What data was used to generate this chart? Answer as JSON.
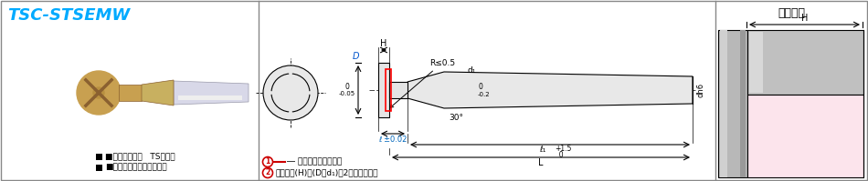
{
  "bg_color": "#ffffff",
  "title_text": "TSC-STSEMW",
  "title_color": "#00aaff",
  "title_fontsize": 13,
  "section1_label1": "■コーティング   TSコート",
  "section1_label2": "■材質　超微粒子超硬合金",
  "dim_l": "ℓ ±0.02",
  "dim_l1": "ℓ₁",
  "dim_R": "R≤0.5",
  "dim_angle": "30°",
  "dim_d1": "d₁",
  "dim_h6": "dh6",
  "kakou_title": "加工形状",
  "note1_text": "― 部に刃が付きます。",
  "note2_text": "有効刃長(H)は(D－d₁)／2となります。"
}
